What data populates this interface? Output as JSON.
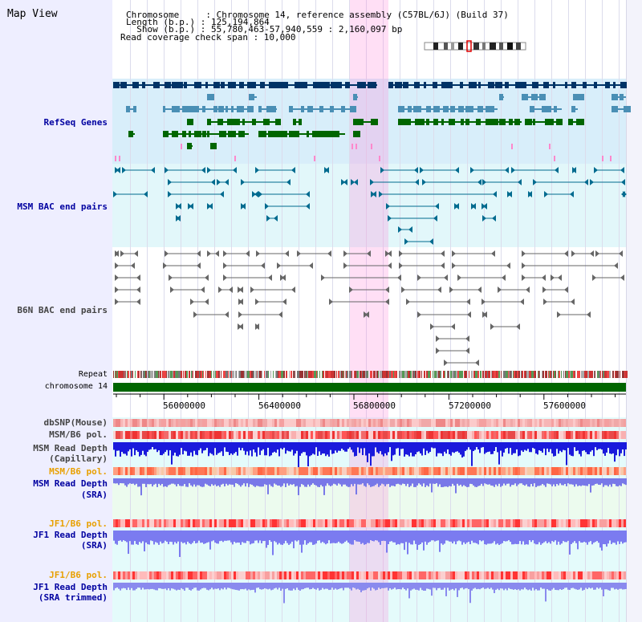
{
  "header": {
    "title": "Map View",
    "info_lines": [
      "Chromosome     : Chromosome 14, reference assembly (C57BL/6J) (Build 37)",
      "Length (b.p.) : 125,194,864",
      "  Show (b.p.) : 55,780,463-57,940,559 : 2,160,097 bp",
      "Read coverage check span : 10,000"
    ]
  },
  "tracks": {
    "refseq": "RefSeq Genes",
    "msm_bac": "MSM BAC end pairs",
    "b6n_bac": "B6N BAC end pairs",
    "repeat": "Repeat",
    "chromosome": "chromosome 14",
    "dbsnp": "dbSNP(Mouse)",
    "msm_b6_pol_1": "MSM/B6 pol.",
    "msm_depth_cap_1": "MSM Read Depth",
    "msm_depth_cap_2": "(Capillary)",
    "msm_b6_pol_2": "MSM/B6 pol.",
    "msm_depth_sra_1": "MSM Read Depth",
    "msm_depth_sra_2": "(SRA)",
    "jf1_b6_pol_1": "JF1/B6 pol.",
    "jf1_depth_sra_1": "JF1 Read Depth",
    "jf1_depth_sra_2": "(SRA)",
    "jf1_b6_pol_2": "JF1/B6 pol.",
    "jf1_depth_trim_1": "JF1 Read Depth",
    "jf1_depth_trim_2": "(SRA trimmed)"
  },
  "axis": {
    "ticks": [
      "56000000",
      "56400000",
      "56800000",
      "57200000",
      "57600000"
    ]
  },
  "colors": {
    "refseq_bg": "#d8eefa",
    "msm_bac_bg": "#e2f6f9",
    "highlight": "#ffc8ee",
    "chromosome": "#006600",
    "depth_blue": "#1a1adc",
    "depth_light": "#7b7bf0"
  }
}
